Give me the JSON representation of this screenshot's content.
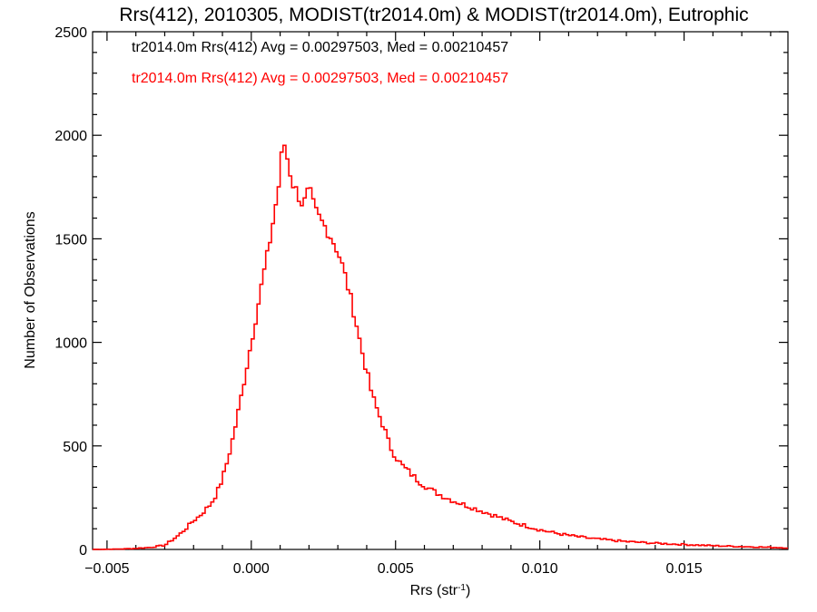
{
  "chart_data": {
    "type": "line",
    "title": "Rrs(412), 2010305, MODIST(tr2014.0m) & MODIST(tr2014.0m), Eutrophic",
    "xlabel_base": "Rrs (str",
    "xlabel_sup": "-1",
    "xlabel_end": ")",
    "ylabel": "Number of Observations",
    "xlim": [
      -0.0055,
      0.0186
    ],
    "ylim": [
      0,
      2500
    ],
    "x_ticks": [
      -0.005,
      0.0,
      0.005,
      0.01,
      0.015
    ],
    "x_tick_labels": [
      "−0.005",
      "0.000",
      "0.005",
      "0.010",
      "0.015"
    ],
    "y_ticks": [
      0,
      500,
      1000,
      1500,
      2000,
      2500
    ],
    "y_tick_labels": [
      "0",
      "500",
      "1000",
      "1500",
      "2000",
      "2500"
    ],
    "legend": [
      {
        "text": "tr2014.0m Rrs(412) Avg = 0.00297503, Med = 0.00210457",
        "color": "#000000"
      },
      {
        "text": "tr2014.0m Rrs(412) Avg = 0.00297503, Med = 0.00210457",
        "color": "#ff0000"
      }
    ],
    "series_color": "#ff0000",
    "series": [
      {
        "style": "histogram-step",
        "points": [
          [
            -0.0055,
            0
          ],
          [
            -0.0045,
            2
          ],
          [
            -0.004,
            5
          ],
          [
            -0.0035,
            10
          ],
          [
            -0.003,
            20
          ],
          [
            -0.0028,
            40
          ],
          [
            -0.0025,
            70
          ],
          [
            -0.0022,
            110
          ],
          [
            -0.002,
            140
          ],
          [
            -0.0018,
            160
          ],
          [
            -0.0016,
            190
          ],
          [
            -0.0014,
            220
          ],
          [
            -0.0012,
            270
          ],
          [
            -0.001,
            340
          ],
          [
            -0.0008,
            440
          ],
          [
            -0.0006,
            560
          ],
          [
            -0.0004,
            700
          ],
          [
            -0.0002,
            850
          ],
          [
            0.0,
            1000
          ],
          [
            0.0002,
            1150
          ],
          [
            0.0004,
            1310
          ],
          [
            0.0006,
            1450
          ],
          [
            0.0008,
            1620
          ],
          [
            0.001,
            1800
          ],
          [
            0.0011,
            1990
          ],
          [
            0.0012,
            1920
          ],
          [
            0.0013,
            1860
          ],
          [
            0.0014,
            1780
          ],
          [
            0.0016,
            1720
          ],
          [
            0.0018,
            1660
          ],
          [
            0.002,
            1740
          ],
          [
            0.0022,
            1640
          ],
          [
            0.0024,
            1590
          ],
          [
            0.0026,
            1550
          ],
          [
            0.0028,
            1500
          ],
          [
            0.003,
            1440
          ],
          [
            0.0032,
            1350
          ],
          [
            0.0034,
            1240
          ],
          [
            0.0036,
            1120
          ],
          [
            0.0038,
            980
          ],
          [
            0.004,
            860
          ],
          [
            0.0042,
            740
          ],
          [
            0.0044,
            660
          ],
          [
            0.0046,
            590
          ],
          [
            0.0048,
            500
          ],
          [
            0.005,
            450
          ],
          [
            0.0052,
            410
          ],
          [
            0.0055,
            370
          ],
          [
            0.0058,
            330
          ],
          [
            0.0062,
            290
          ],
          [
            0.0066,
            260
          ],
          [
            0.007,
            235
          ],
          [
            0.0075,
            210
          ],
          [
            0.008,
            185
          ],
          [
            0.0085,
            160
          ],
          [
            0.009,
            135
          ],
          [
            0.0095,
            115
          ],
          [
            0.01,
            95
          ],
          [
            0.0105,
            80
          ],
          [
            0.011,
            68
          ],
          [
            0.0115,
            58
          ],
          [
            0.012,
            50
          ],
          [
            0.013,
            38
          ],
          [
            0.014,
            30
          ],
          [
            0.015,
            24
          ],
          [
            0.016,
            18
          ],
          [
            0.017,
            14
          ],
          [
            0.018,
            10
          ],
          [
            0.0186,
            8
          ]
        ]
      }
    ]
  }
}
